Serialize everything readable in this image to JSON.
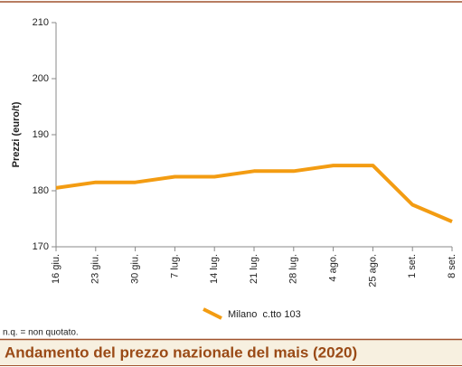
{
  "chart_data": {
    "type": "line",
    "title": "Andamento del prezzo nazionale del mais (2020)",
    "ylabel": "Prezzi (euro/t)",
    "note": "n.q. = non quotato.",
    "categories": [
      "16 giu.",
      "23 giu.",
      "30 giu.",
      "7 lug.",
      "14 lug.",
      "21 lug.",
      "28 lug.",
      "4 ago.",
      "25 ago.",
      "1 set.",
      "8 set."
    ],
    "series": [
      {
        "name": "Milano  c.tto 103",
        "color": "#f39c12",
        "values": [
          180.5,
          181.5,
          181.5,
          182.5,
          182.5,
          183.5,
          183.5,
          184.5,
          184.5,
          177.5,
          174.5
        ]
      }
    ],
    "ylim": [
      170,
      210
    ],
    "yticks": [
      170,
      180,
      190,
      200,
      210
    ],
    "grid": false
  }
}
